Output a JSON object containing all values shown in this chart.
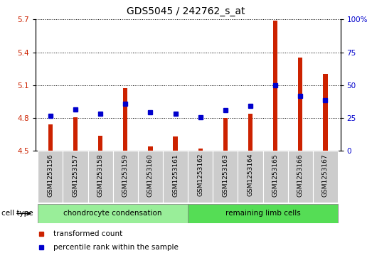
{
  "title": "GDS5045 / 242762_s_at",
  "samples": [
    "GSM1253156",
    "GSM1253157",
    "GSM1253158",
    "GSM1253159",
    "GSM1253160",
    "GSM1253161",
    "GSM1253162",
    "GSM1253163",
    "GSM1253164",
    "GSM1253165",
    "GSM1253166",
    "GSM1253167"
  ],
  "red_values": [
    4.74,
    4.81,
    4.64,
    5.07,
    4.54,
    4.63,
    4.52,
    4.8,
    4.84,
    5.69,
    5.35,
    5.2
  ],
  "blue_values": [
    4.82,
    4.88,
    4.84,
    4.93,
    4.85,
    4.84,
    4.81,
    4.87,
    4.91,
    5.1,
    5.0,
    4.96
  ],
  "ylim_left": [
    4.5,
    5.7
  ],
  "yticks_left": [
    4.5,
    4.8,
    5.1,
    5.4,
    5.7
  ],
  "ylim_right": [
    0,
    100
  ],
  "yticks_right": [
    0,
    25,
    50,
    75,
    100
  ],
  "bar_color": "#cc2200",
  "dot_color": "#0000cc",
  "grid_color": "#000000",
  "bg_color": "#ffffff",
  "cell_type_label": "cell type",
  "group1_label": "chondrocyte condensation",
  "group2_label": "remaining limb cells",
  "group1_color": "#99ee99",
  "group2_color": "#55dd55",
  "group1_indices": [
    0,
    1,
    2,
    3,
    4,
    5
  ],
  "group2_indices": [
    6,
    7,
    8,
    9,
    10,
    11
  ],
  "legend1": "transformed count",
  "legend2": "percentile rank within the sample",
  "tick_label_color_left": "#cc2200",
  "tick_label_color_right": "#0000cc",
  "xlabel_area_color": "#cccccc"
}
